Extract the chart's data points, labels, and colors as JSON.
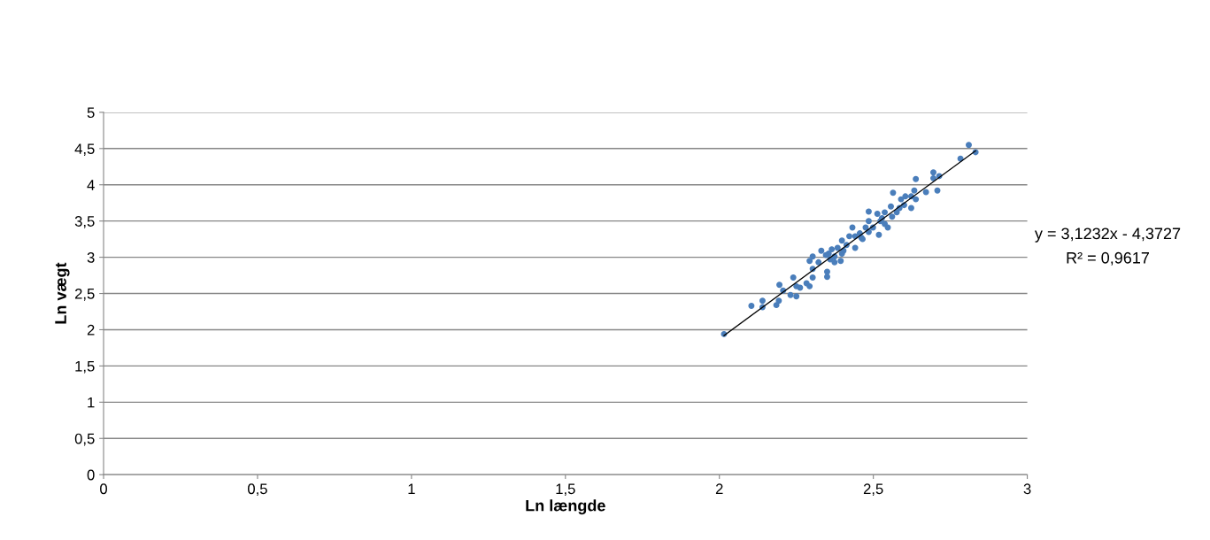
{
  "chart_data": {
    "type": "scatter",
    "xlabel": "Ln længde",
    "ylabel": "Ln vægt",
    "xlim": [
      0,
      3
    ],
    "ylim": [
      0,
      5
    ],
    "xticks": [
      0,
      {
        "value": 0.5,
        "label": "0,5"
      },
      1,
      {
        "value": 1.5,
        "label": "1,5"
      },
      2,
      {
        "value": 2.5,
        "label": "2,5"
      },
      3
    ],
    "yticks": [
      0,
      {
        "value": 0.5,
        "label": "0,5"
      },
      1,
      {
        "value": 1.5,
        "label": "1,5"
      },
      2,
      {
        "value": 2.5,
        "label": "2,5"
      },
      3,
      {
        "value": 3.5,
        "label": "3,5"
      },
      4,
      {
        "value": 4.5,
        "label": "4,5"
      },
      5
    ],
    "grid": "y",
    "legend": false,
    "series": [
      {
        "color": "#4a7ebb",
        "marker": "circle",
        "x": [
          2.015,
          2.104,
          2.14,
          2.14,
          2.185,
          2.193,
          2.195,
          2.207,
          2.231,
          2.24,
          2.25,
          2.25,
          2.262,
          2.283,
          2.293,
          2.303,
          2.303,
          2.293,
          2.303,
          2.322,
          2.331,
          2.35,
          2.35,
          2.355,
          2.36,
          2.365,
          2.374,
          2.384,
          2.394,
          2.398,
          2.398,
          2.413,
          2.432,
          2.441,
          2.441,
          2.456,
          2.465,
          2.475,
          2.485,
          2.485,
          2.485,
          2.499,
          2.513,
          2.518,
          2.523,
          2.537,
          2.547,
          2.557,
          2.561,
          2.564,
          2.576,
          2.59,
          2.6,
          2.604,
          2.623,
          2.633,
          2.638,
          2.638,
          2.671,
          2.695,
          2.695,
          2.708,
          2.714,
          2.783,
          2.81,
          2.832,
          2.346,
          2.374,
          2.403,
          2.422,
          2.461,
          2.528,
          2.537,
          2.585,
          2.623
        ],
        "values": [
          1.94,
          2.33,
          2.4,
          2.31,
          2.34,
          2.4,
          2.62,
          2.54,
          2.48,
          2.72,
          2.46,
          2.6,
          2.58,
          2.64,
          2.6,
          2.72,
          2.84,
          2.95,
          3.01,
          2.93,
          3.09,
          2.8,
          2.73,
          3.05,
          2.97,
          3.11,
          3.01,
          3.13,
          2.95,
          3.05,
          3.23,
          3.17,
          3.41,
          3.13,
          3.29,
          3.33,
          3.25,
          3.41,
          3.63,
          3.5,
          3.35,
          3.41,
          3.6,
          3.31,
          3.5,
          3.62,
          3.41,
          3.7,
          3.56,
          3.89,
          3.62,
          3.8,
          3.72,
          3.84,
          3.68,
          3.92,
          4.08,
          3.8,
          3.9,
          4.17,
          4.09,
          3.92,
          4.12,
          4.36,
          4.55,
          4.45,
          3.03,
          2.93,
          3.09,
          3.29,
          3.27,
          3.54,
          3.46,
          3.68,
          3.84
        ]
      },
      {
        "type": "line",
        "color": "#000000",
        "marker": "none",
        "line_style": "solid",
        "x": [
          2.015,
          2.832
        ],
        "values": [
          1.92,
          4.47
        ]
      }
    ],
    "annotations": [
      "y = 3,1232x - 4,3727",
      "R² = 0,9617"
    ]
  }
}
